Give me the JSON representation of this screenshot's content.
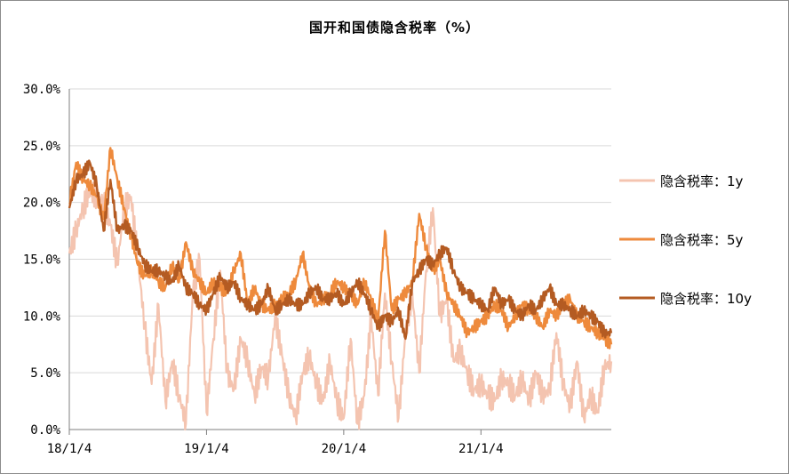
{
  "chart_data": {
    "type": "line",
    "title": "国开和国债隐含税率（%）",
    "xlabel": "",
    "ylabel": "",
    "ylim": [
      0,
      30
    ],
    "y_ticks": [
      "0.0%",
      "5.0%",
      "10.0%",
      "15.0%",
      "20.0%",
      "25.0%",
      "30.0%"
    ],
    "y_tick_values": [
      0,
      5,
      10,
      15,
      20,
      25,
      30
    ],
    "x_ticks": [
      "18/1/4",
      "19/1/4",
      "20/1/4",
      "21/1/4"
    ],
    "x_tick_values": [
      2018.0,
      2019.0,
      2020.0,
      2021.0
    ],
    "xlim": [
      2018.0,
      2021.95
    ],
    "grid": true,
    "legend_position": "right",
    "x": [
      2018.0,
      2018.05,
      2018.1,
      2018.15,
      2018.2,
      2018.25,
      2018.3,
      2018.35,
      2018.4,
      2018.45,
      2018.5,
      2018.55,
      2018.6,
      2018.65,
      2018.7,
      2018.75,
      2018.8,
      2018.85,
      2018.9,
      2018.95,
      2019.0,
      2019.05,
      2019.1,
      2019.15,
      2019.2,
      2019.25,
      2019.3,
      2019.35,
      2019.4,
      2019.45,
      2019.5,
      2019.55,
      2019.6,
      2019.65,
      2019.7,
      2019.75,
      2019.8,
      2019.85,
      2019.9,
      2019.95,
      2020.0,
      2020.05,
      2020.1,
      2020.15,
      2020.2,
      2020.25,
      2020.3,
      2020.35,
      2020.4,
      2020.45,
      2020.5,
      2020.55,
      2020.6,
      2020.65,
      2020.7,
      2020.75,
      2020.8,
      2020.85,
      2020.9,
      2020.95,
      2021.0,
      2021.05,
      2021.1,
      2021.15,
      2021.2,
      2021.25,
      2021.3,
      2021.35,
      2021.4,
      2021.45,
      2021.5,
      2021.55,
      2021.6,
      2021.65,
      2021.7,
      2021.75,
      2021.8,
      2021.85,
      2021.9,
      2021.95
    ],
    "series": [
      {
        "name": "隐含税率：1y",
        "color": "#f4c4b0",
        "values": [
          15.5,
          17.5,
          19.5,
          21.0,
          20.5,
          20.0,
          18.0,
          14.5,
          19.5,
          20.5,
          15.0,
          9.0,
          4.0,
          11.0,
          2.5,
          6.0,
          3.0,
          0.5,
          12.0,
          15.0,
          1.5,
          8.0,
          14.0,
          5.0,
          3.5,
          8.0,
          6.0,
          3.0,
          5.5,
          4.5,
          10.0,
          6.5,
          3.0,
          1.0,
          5.0,
          6.5,
          4.0,
          2.5,
          6.0,
          2.5,
          1.0,
          8.0,
          0.5,
          3.0,
          10.0,
          3.0,
          12.0,
          6.0,
          1.0,
          8.5,
          12.0,
          5.0,
          14.0,
          19.5,
          10.0,
          11.5,
          6.0,
          7.0,
          5.0,
          3.5,
          4.0,
          3.0,
          2.5,
          4.5,
          4.0,
          3.0,
          4.5,
          2.5,
          5.0,
          3.0,
          3.5,
          8.5,
          4.0,
          2.0,
          6.0,
          1.0,
          3.0,
          1.5,
          5.5,
          6.0
        ]
      },
      {
        "name": "隐含税率：5y",
        "color": "#ee8a3c",
        "values": [
          20.0,
          23.5,
          22.0,
          21.5,
          20.5,
          18.5,
          24.8,
          22.0,
          19.5,
          17.0,
          14.5,
          13.5,
          14.0,
          13.0,
          12.5,
          14.5,
          13.0,
          16.5,
          14.0,
          13.0,
          12.0,
          13.0,
          12.5,
          12.0,
          14.0,
          15.5,
          11.0,
          12.5,
          11.0,
          10.5,
          11.0,
          11.5,
          12.0,
          13.0,
          15.5,
          12.5,
          11.0,
          11.5,
          12.0,
          13.0,
          12.5,
          12.0,
          11.0,
          13.0,
          11.5,
          9.5,
          17.5,
          10.5,
          11.5,
          12.0,
          13.0,
          19.0,
          16.0,
          14.0,
          15.0,
          12.0,
          11.0,
          10.0,
          8.5,
          9.0,
          9.5,
          10.0,
          11.0,
          10.5,
          9.0,
          10.0,
          11.0,
          10.5,
          10.0,
          9.0,
          10.5,
          10.0,
          11.0,
          11.5,
          10.0,
          9.5,
          9.0,
          8.5,
          8.0,
          7.5
        ]
      },
      {
        "name": "隐含税率：10y",
        "color": "#b45b22",
        "values": [
          19.5,
          22.0,
          22.5,
          23.5,
          21.5,
          17.5,
          22.0,
          17.5,
          18.0,
          17.5,
          16.0,
          14.5,
          14.0,
          14.0,
          13.5,
          13.0,
          14.5,
          12.5,
          12.0,
          11.0,
          10.5,
          12.0,
          13.5,
          12.5,
          13.0,
          11.5,
          11.0,
          10.5,
          11.0,
          12.5,
          10.5,
          11.0,
          11.5,
          11.0,
          11.0,
          12.0,
          12.5,
          11.5,
          11.5,
          12.0,
          11.0,
          12.0,
          13.0,
          12.0,
          10.5,
          9.0,
          10.0,
          9.5,
          10.5,
          8.0,
          13.0,
          14.0,
          15.0,
          14.5,
          15.5,
          16.0,
          14.0,
          12.5,
          12.0,
          11.5,
          11.0,
          10.5,
          12.5,
          11.0,
          11.5,
          10.5,
          10.0,
          11.0,
          10.5,
          11.5,
          12.5,
          11.0,
          11.0,
          10.5,
          10.0,
          10.5,
          10.0,
          9.5,
          8.5,
          8.5
        ]
      }
    ]
  }
}
